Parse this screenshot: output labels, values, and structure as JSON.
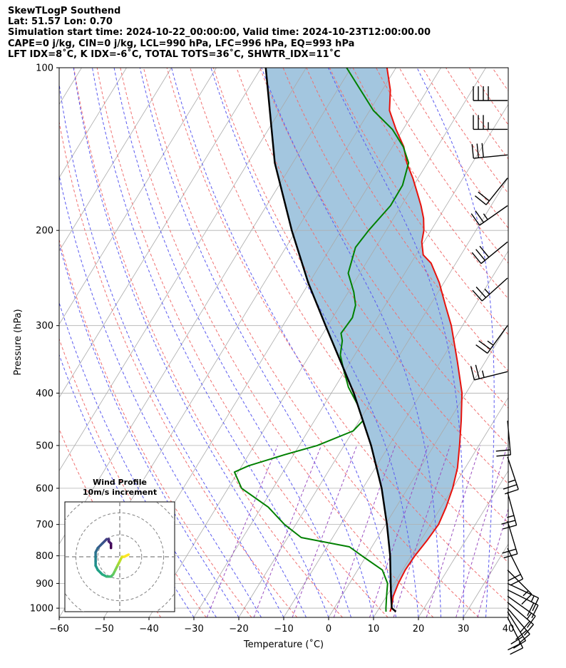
{
  "header": {
    "line1": "SkewTLogP Southend",
    "line2": "Lat: 51.57   Lon: 0.70",
    "line3": "Simulation start time: 2024-10-22_00:00:00, Valid time: 2024-10-23T12:00:00.00",
    "line4": "CAPE=0 j/kg, CIN=0 j/kg, LCL=990 hPa, LFC=996 hPa, EQ=993 hPa",
    "line5": "LFT IDX=8˚C, K IDX=-6˚C, TOTAL TOTS=36˚C, SHWTR_IDX=11˚C"
  },
  "inset": {
    "title": "Wind Profile",
    "subtitle": "10m/s increment"
  },
  "colors": {
    "temperature": "#e8120c",
    "dewpoint": "#008000",
    "parcel": "#000000",
    "cape_fill": "#a3c6df",
    "dry_adiabat": "#f07070",
    "moist_adiabat": "#5a5af0",
    "mixing_ratio": "#9b4fc0",
    "isotherm": "#aaaaaa"
  },
  "chart_data": {
    "type": "line",
    "xlabel": "Temperature (˚C)",
    "ylabel": "Pressure (hPa)",
    "xlim": [
      -60,
      40
    ],
    "ylim": [
      1040,
      100
    ],
    "y_scale": "log",
    "x_ticks": [
      "−60",
      "−50",
      "−40",
      "−30",
      "−20",
      "−10",
      "0",
      "10",
      "20",
      "30",
      "40"
    ],
    "y_ticks": [
      "1000",
      "900",
      "800",
      "700",
      "600",
      "500",
      "400",
      "300",
      "200",
      "100"
    ],
    "grid": true,
    "series": [
      {
        "role": "temperature",
        "points": [
          [
            1015,
            12.9
          ],
          [
            1000,
            12.7
          ],
          [
            950,
            11.5
          ],
          [
            900,
            10.9
          ],
          [
            850,
            10.6
          ],
          [
            800,
            10.8
          ],
          [
            750,
            11.4
          ],
          [
            700,
            11.8
          ],
          [
            650,
            11.1
          ],
          [
            600,
            10
          ],
          [
            550,
            8.3
          ],
          [
            500,
            5.7
          ],
          [
            450,
            2.7
          ],
          [
            400,
            -0.9
          ],
          [
            350,
            -6.2
          ],
          [
            300,
            -12.5
          ],
          [
            275,
            -16.6
          ],
          [
            250,
            -21
          ],
          [
            230,
            -25.5
          ],
          [
            222,
            -28.4
          ],
          [
            210,
            -30.5
          ],
          [
            200,
            -31.6
          ],
          [
            190,
            -33.3
          ],
          [
            180,
            -35.6
          ],
          [
            170,
            -38.3
          ],
          [
            160,
            -41.2
          ],
          [
            150,
            -44.6
          ],
          [
            140,
            -47.5
          ],
          [
            130,
            -51.6
          ],
          [
            120,
            -55.6
          ],
          [
            110,
            -58.2
          ],
          [
            100,
            -62
          ]
        ]
      },
      {
        "role": "dewpoint",
        "points": [
          [
            1015,
            12
          ],
          [
            1000,
            11.5
          ],
          [
            950,
            10
          ],
          [
            900,
            8.5
          ],
          [
            850,
            5.5
          ],
          [
            800,
            -1
          ],
          [
            770,
            -5
          ],
          [
            740,
            -17
          ],
          [
            700,
            -22.5
          ],
          [
            650,
            -28.5
          ],
          [
            600,
            -37
          ],
          [
            560,
            -40.8
          ],
          [
            545,
            -38.5
          ],
          [
            520,
            -32
          ],
          [
            500,
            -26
          ],
          [
            470,
            -20
          ],
          [
            450,
            -19.2
          ],
          [
            420,
            -22.6
          ],
          [
            390,
            -27
          ],
          [
            360,
            -30.7
          ],
          [
            340,
            -33.2
          ],
          [
            320,
            -34.7
          ],
          [
            310,
            -36
          ],
          [
            300,
            -35.8
          ],
          [
            290,
            -35.6
          ],
          [
            275,
            -36.6
          ],
          [
            260,
            -38.8
          ],
          [
            240,
            -42.6
          ],
          [
            215,
            -44.5
          ],
          [
            200,
            -43.9
          ],
          [
            180,
            -42.4
          ],
          [
            165,
            -42.5
          ],
          [
            150,
            -44.2
          ],
          [
            140,
            -47.6
          ],
          [
            130,
            -52.4
          ],
          [
            120,
            -59.2
          ],
          [
            100,
            -71
          ]
        ]
      },
      {
        "role": "parcel",
        "points": [
          [
            1015,
            14.2
          ],
          [
            1000,
            12.8
          ],
          [
            950,
            11
          ],
          [
            900,
            9.2
          ],
          [
            850,
            7.3
          ],
          [
            800,
            5.3
          ],
          [
            700,
            0.3
          ],
          [
            600,
            -5.8
          ],
          [
            500,
            -14
          ],
          [
            400,
            -25
          ],
          [
            300,
            -40.5
          ],
          [
            250,
            -50.2
          ],
          [
            200,
            -61
          ],
          [
            150,
            -74
          ],
          [
            100,
            -89
          ]
        ]
      }
    ],
    "wind_barbs": [
      {
        "p": 1040,
        "u": -10,
        "v": 20
      },
      {
        "p": 1015,
        "u": -10,
        "v": 16
      },
      {
        "p": 1000,
        "u": -12,
        "v": 14
      },
      {
        "p": 975,
        "u": -14,
        "v": 12
      },
      {
        "p": 950,
        "u": -14,
        "v": 10
      },
      {
        "p": 925,
        "u": -16,
        "v": 8
      },
      {
        "p": 900,
        "u": -15,
        "v": 7
      },
      {
        "p": 850,
        "u": -12,
        "v": 12
      },
      {
        "p": 775,
        "u": -8,
        "v": 16
      },
      {
        "p": 690,
        "u": -6,
        "v": 20
      },
      {
        "p": 610,
        "u": -6,
        "v": 22
      },
      {
        "p": 525,
        "u": -8,
        "v": 24
      },
      {
        "p": 450,
        "u": -2,
        "v": 22
      },
      {
        "p": 365,
        "u": 24,
        "v": 6
      },
      {
        "p": 300,
        "u": 16,
        "v": 22
      },
      {
        "p": 245,
        "u": 20,
        "v": 18
      },
      {
        "p": 210,
        "u": 22,
        "v": 18
      },
      {
        "p": 180,
        "u": 20,
        "v": 14
      },
      {
        "p": 160,
        "u": 12,
        "v": 15
      },
      {
        "p": 145,
        "u": 30,
        "v": 3
      },
      {
        "p": 130,
        "u": 36,
        "v": 0
      },
      {
        "p": 115,
        "u": 38,
        "v": 0
      }
    ],
    "hodograph": {
      "ring_step": 10,
      "points": [
        [
          -4,
          4
        ],
        [
          -4,
          6
        ],
        [
          -5,
          7
        ],
        [
          -5,
          8
        ],
        [
          -6,
          8
        ],
        [
          -7,
          7
        ],
        [
          -8,
          6
        ],
        [
          -10,
          4
        ],
        [
          -11,
          2
        ],
        [
          -11,
          0
        ],
        [
          -11,
          -2
        ],
        [
          -11,
          -4
        ],
        [
          -10,
          -6
        ],
        [
          -8,
          -8
        ],
        [
          -6,
          -9
        ],
        [
          -4,
          -9
        ],
        [
          -3,
          -8
        ],
        [
          -2,
          -6
        ],
        [
          -1,
          -4
        ],
        [
          0,
          -2
        ],
        [
          1,
          0
        ],
        [
          2,
          0
        ],
        [
          4,
          1
        ]
      ]
    }
  }
}
